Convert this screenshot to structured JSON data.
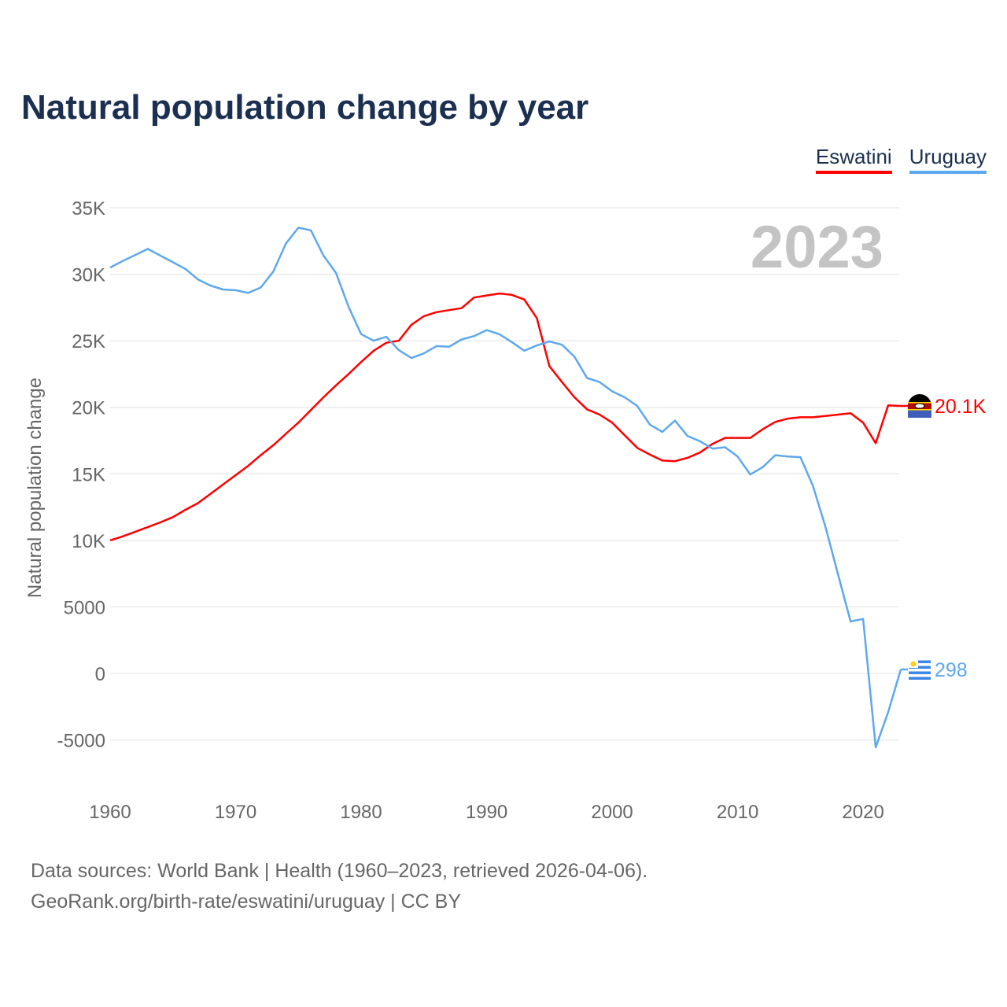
{
  "chart_data": {
    "type": "line",
    "title": "Natural population change by year",
    "ylabel": "Natural population change",
    "xlabel": "",
    "year_watermark": "2023",
    "ylim": [
      -5000,
      35000
    ],
    "xlim": [
      1960,
      2023
    ],
    "y_ticks": [
      -5000,
      0,
      5000,
      10000,
      15000,
      20000,
      25000,
      30000,
      35000
    ],
    "y_tick_labels": [
      "-5000",
      "0",
      "5000",
      "10K",
      "15K",
      "20K",
      "25K",
      "30K",
      "35K"
    ],
    "x_ticks": [
      1960,
      1970,
      1980,
      1990,
      2000,
      2010,
      2020
    ],
    "x_tick_labels": [
      "1960",
      "1970",
      "1980",
      "1990",
      "2000",
      "2010",
      "2020"
    ],
    "grid": true,
    "legend_position": "top-right",
    "x": [
      1960,
      1961,
      1962,
      1963,
      1964,
      1965,
      1966,
      1967,
      1968,
      1969,
      1970,
      1971,
      1972,
      1973,
      1974,
      1975,
      1976,
      1977,
      1978,
      1979,
      1980,
      1981,
      1982,
      1983,
      1984,
      1985,
      1986,
      1987,
      1988,
      1989,
      1990,
      1991,
      1992,
      1993,
      1994,
      1995,
      1996,
      1997,
      1998,
      1999,
      2000,
      2001,
      2002,
      2003,
      2004,
      2005,
      2006,
      2007,
      2008,
      2009,
      2010,
      2011,
      2012,
      2013,
      2014,
      2015,
      2016,
      2017,
      2018,
      2019,
      2020,
      2021,
      2022,
      2023
    ],
    "series": [
      {
        "name": "Eswatini",
        "color": "#ff0000",
        "end_label": "20.1K",
        "flag": "eswatini-flag",
        "values": [
          10000,
          10300,
          10650,
          11000,
          11350,
          11750,
          12300,
          12800,
          13500,
          14200,
          14900,
          15600,
          16400,
          17150,
          18000,
          18850,
          19800,
          20750,
          21650,
          22500,
          23400,
          24250,
          24850,
          25000,
          26200,
          26850,
          27150,
          27300,
          27450,
          28250,
          28400,
          28550,
          28450,
          28100,
          26700,
          23100,
          21900,
          20750,
          19850,
          19450,
          18850,
          17900,
          16950,
          16450,
          16000,
          15950,
          16200,
          16600,
          17250,
          17700,
          17700,
          17700,
          18350,
          18900,
          19150,
          19250,
          19250,
          19350,
          19450,
          19550,
          18850,
          17300,
          20150,
          20100
        ]
      },
      {
        "name": "Uruguay",
        "color": "#5ea8ee",
        "end_label": "298",
        "flag": "uruguay-flag",
        "values": [
          30500,
          31000,
          31450,
          31900,
          31400,
          30900,
          30400,
          29600,
          29150,
          28850,
          28800,
          28600,
          29000,
          30200,
          32300,
          33500,
          33300,
          31400,
          30100,
          27550,
          25500,
          25000,
          25300,
          24300,
          23700,
          24050,
          24600,
          24550,
          25100,
          25350,
          25800,
          25500,
          24900,
          24250,
          24650,
          24950,
          24700,
          23800,
          22200,
          21900,
          21200,
          20750,
          20100,
          18700,
          18150,
          19000,
          17850,
          17450,
          16900,
          17000,
          16300,
          14950,
          15500,
          16400,
          16300,
          16250,
          14100,
          11000,
          7450,
          3900,
          4100,
          -5550,
          -2900,
          298
        ]
      }
    ]
  },
  "footer": {
    "line1": "Data sources: World Bank | Health (1960–2023, retrieved 2026-04-06).",
    "line2": "GeoRank.org/birth-rate/eswatini/uruguay | CC BY"
  }
}
